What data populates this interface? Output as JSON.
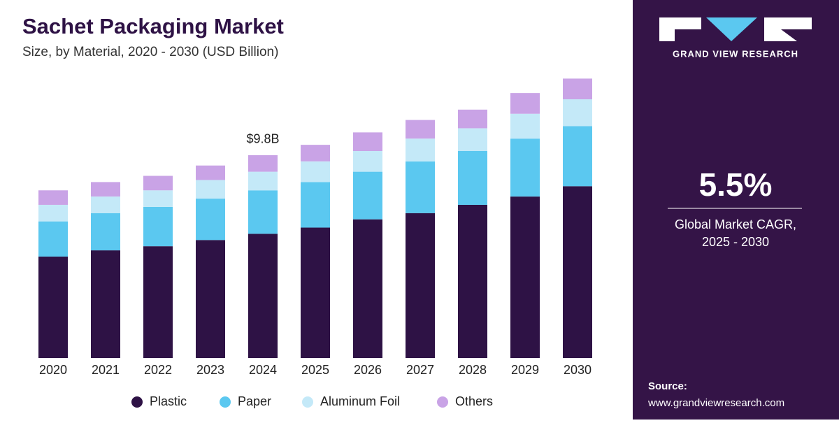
{
  "chart_data": {
    "type": "stacked_bar",
    "title": "Sachet Packaging Market",
    "subtitle": "Size, by Material, 2020 - 2030 (USD Billion)",
    "categories": [
      "2020",
      "2021",
      "2022",
      "2023",
      "2024",
      "2025",
      "2026",
      "2027",
      "2028",
      "2029",
      "2030"
    ],
    "series": [
      {
        "name": "Plastic",
        "color": "#2e1245",
        "values": [
          4.9,
          5.2,
          5.4,
          5.7,
          6.0,
          6.3,
          6.7,
          7.0,
          7.4,
          7.8,
          8.3
        ]
      },
      {
        "name": "Paper",
        "color": "#5bc8f0",
        "values": [
          1.7,
          1.8,
          1.9,
          2.0,
          2.1,
          2.2,
          2.3,
          2.5,
          2.6,
          2.8,
          2.9
        ]
      },
      {
        "name": "Aluminum Foil",
        "color": "#c4e9f8",
        "values": [
          0.8,
          0.8,
          0.8,
          0.9,
          0.9,
          1.0,
          1.0,
          1.1,
          1.1,
          1.2,
          1.3
        ]
      },
      {
        "name": "Others",
        "color": "#c9a3e6",
        "values": [
          0.7,
          0.7,
          0.7,
          0.7,
          0.8,
          0.8,
          0.9,
          0.9,
          0.9,
          1.0,
          1.0
        ]
      }
    ],
    "annotation": {
      "label": "$9.8B",
      "x": "2024",
      "value": 9.8
    },
    "legend": "bottom"
  },
  "sidebar": {
    "brand": "GRAND VIEW RESEARCH",
    "cagr": "5.5%",
    "cagr_label_1": "Global Market CAGR,",
    "cagr_label_2": "2025 - 2030",
    "source_label": "Source:",
    "source_url": "www.grandviewresearch.com"
  }
}
